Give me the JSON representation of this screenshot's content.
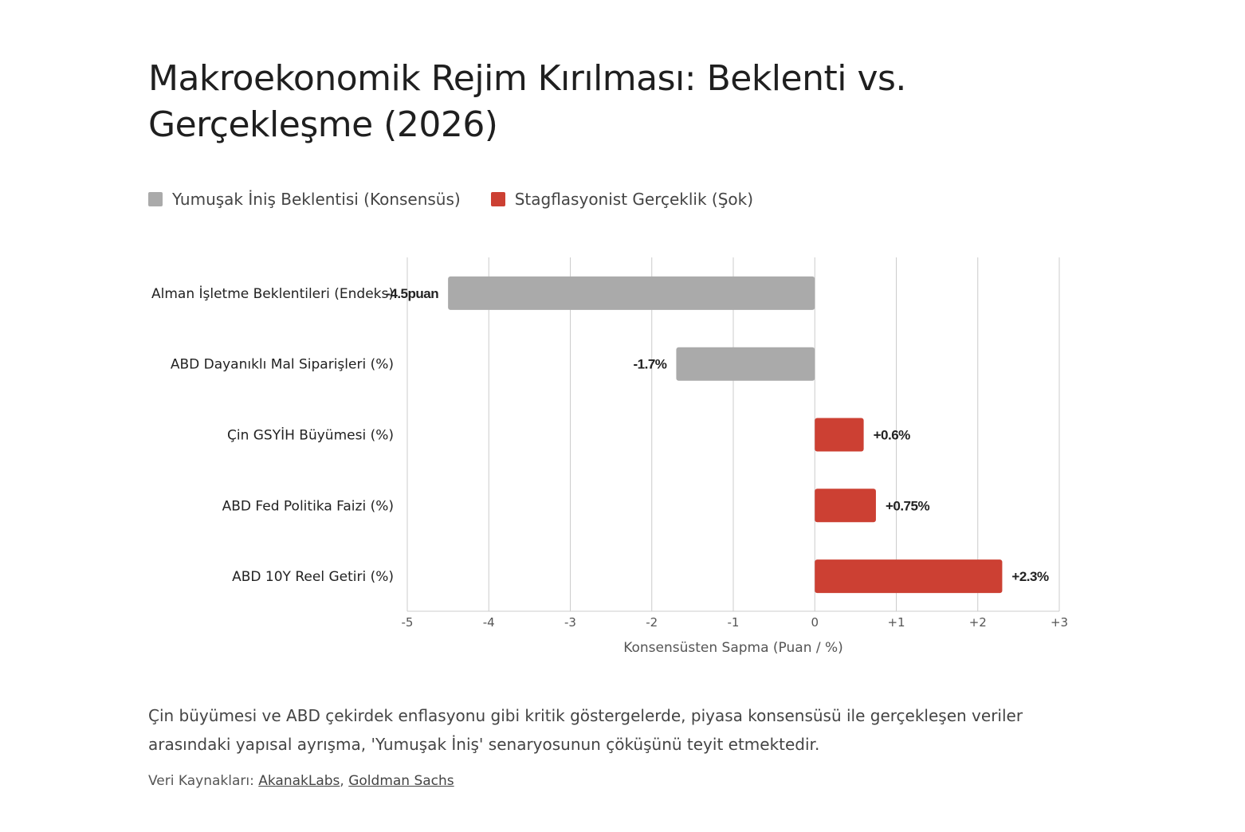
{
  "title": "Makroekonomik Rejim Kırılması: Beklenti vs. Gerçekleşme (2026)",
  "legend": [
    {
      "label": "Yumuşak İniş Beklentisi (Konsensüs)",
      "color": "#aaaaaa"
    },
    {
      "label": "Stagflasyonist Gerçeklik (Şok)",
      "color": "#cc4033"
    }
  ],
  "chart_data": {
    "type": "bar",
    "orientation": "horizontal",
    "categories": [
      "Alman İşletme Beklentileri (Endeks)",
      "ABD Dayanıklı Mal Siparişleri (%)",
      "Çin GSYİH Büyümesi (%)",
      "ABD Fed Politika Faizi (%)",
      "ABD 10Y Reel Getiri (%)"
    ],
    "values": [
      -4.5,
      -1.7,
      0.6,
      0.75,
      2.3
    ],
    "data_labels": [
      "-4.5puan",
      "-1.7%",
      "+0.6%",
      "+0.75%",
      "+2.3%"
    ],
    "series_of_bar": [
      "Yumuşak İniş Beklentisi (Konsensüs)",
      "Yumuşak İniş Beklentisi (Konsensüs)",
      "Stagflasyonist Gerçeklik (Şok)",
      "Stagflasyonist Gerçeklik (Şok)",
      "Stagflasyonist Gerçeklik (Şok)"
    ],
    "colors": {
      "negative": "#aaaaaa",
      "positive": "#cc4033"
    },
    "xlabel": "Konsensüsten Sapma (Puan / %)",
    "xlim": [
      -5,
      3
    ],
    "xticks": [
      -5,
      -4,
      -3,
      -2,
      -1,
      0,
      1,
      2,
      3
    ],
    "xtick_labels": [
      "-5",
      "-4",
      "-3",
      "-2",
      "-1",
      "0",
      "+1",
      "+2",
      "+3"
    ],
    "grid": true,
    "legend_position": "top-left"
  },
  "caption": "Çin büyümesi ve ABD çekirdek enflasyonu gibi kritik göstergelerde, piyasa konsensüsü ile gerçekleşen veriler arasındaki yapısal ayrışma, 'Yumuşak İniş' senaryosunun çöküşünü teyit etmektedir.",
  "sources": {
    "label": "Veri Kaynakları:",
    "links": [
      "AkanakLabs",
      "Goldman Sachs"
    ]
  }
}
